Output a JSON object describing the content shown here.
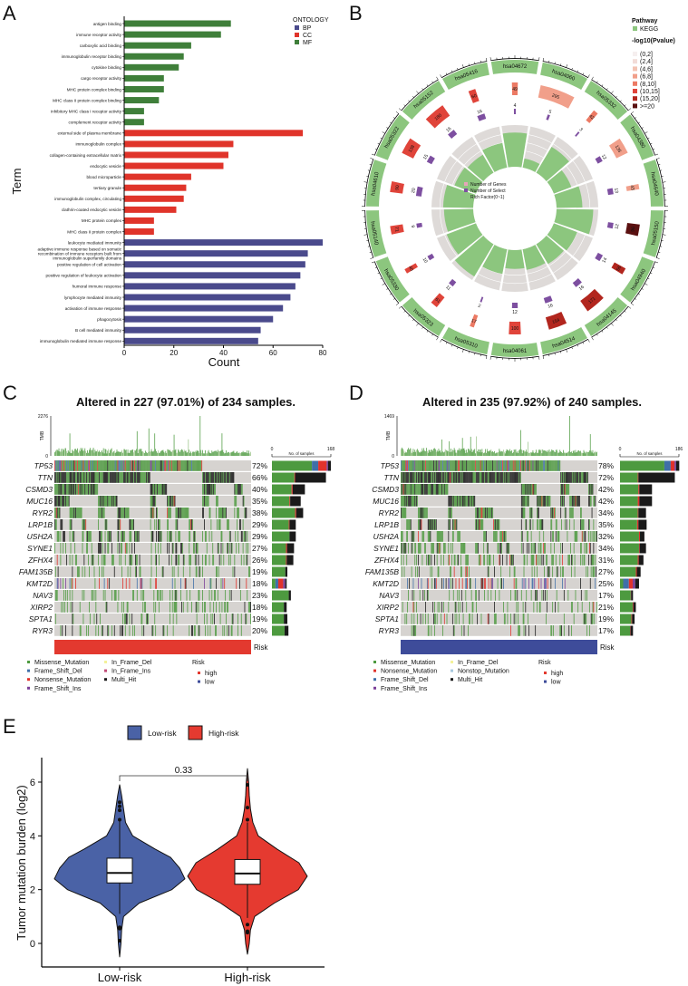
{
  "panel_labels": [
    "A",
    "B",
    "C",
    "D",
    "E"
  ],
  "colors": {
    "BP": "#4a4a8c",
    "CC": "#e0342a",
    "MF": "#3f7f3a",
    "kegg": "#8cc67e",
    "genes": "#e8584a",
    "select": "#7d4fa0",
    "rich": "#8cc67e",
    "ring_bg": "#dedad8",
    "Missense_Mutation": "#4d9a3f",
    "Frame_Shift_Del": "#3f6fa8",
    "Nonsense_Mutation": "#e0322c",
    "Frame_Shift_Ins": "#7b3f99",
    "In_Frame_Del": "#f4f29a",
    "In_Frame_Ins": "#c24b78",
    "Nonstop_Mutation": "#a6c8de",
    "Multi_Hit": "#1a1a1a",
    "cell_bg": "#d6d3d0",
    "risk_high": "#e3392f",
    "risk_low": "#3e4c9a",
    "low_violin": "#4a62a6",
    "high_violin": "#e53a30"
  },
  "chart_data": [
    {
      "type": "bar",
      "orientation": "horizontal",
      "xlabel": "Count",
      "ylabel": "Term",
      "xlim": [
        0,
        80
      ],
      "xticks": [
        "0",
        "20",
        "40",
        "60",
        "80"
      ],
      "legend": {
        "title": "ONTOLOGY",
        "entries": [
          "BP",
          "CC",
          "MF"
        ],
        "position": "top-right"
      },
      "categories": [
        {
          "term": "antigen binding",
          "ont": "MF",
          "count": 43
        },
        {
          "term": "immune receptor activity",
          "ont": "MF",
          "count": 39
        },
        {
          "term": "carboxylic acid binding",
          "ont": "MF",
          "count": 27
        },
        {
          "term": "immunoglobulin receptor binding",
          "ont": "MF",
          "count": 24
        },
        {
          "term": "cytokine binding",
          "ont": "MF",
          "count": 22
        },
        {
          "term": "cargo receptor activity",
          "ont": "MF",
          "count": 16
        },
        {
          "term": "MHC protein complex binding",
          "ont": "MF",
          "count": 16
        },
        {
          "term": "MHC class II protein complex binding",
          "ont": "MF",
          "count": 14
        },
        {
          "term": "inhibitory MHC class I receptor activity",
          "ont": "MF",
          "count": 8
        },
        {
          "term": "complement receptor activity",
          "ont": "MF",
          "count": 8
        },
        {
          "term": "external side of plasma membrane",
          "ont": "CC",
          "count": 72
        },
        {
          "term": "immunoglobulin complex",
          "ont": "CC",
          "count": 44
        },
        {
          "term": "collagen-containing extracellular matrix",
          "ont": "CC",
          "count": 42
        },
        {
          "term": "endocytic vesicle",
          "ont": "CC",
          "count": 40
        },
        {
          "term": "blood microparticle",
          "ont": "CC",
          "count": 27
        },
        {
          "term": "tertiary granule",
          "ont": "CC",
          "count": 25
        },
        {
          "term": "immunoglobulin complex, circulating",
          "ont": "CC",
          "count": 24
        },
        {
          "term": "clathrin-coated endocytic vesicle",
          "ont": "CC",
          "count": 21
        },
        {
          "term": "MHC protein complex",
          "ont": "CC",
          "count": 12
        },
        {
          "term": "MHC class II protein complex",
          "ont": "CC",
          "count": 12
        },
        {
          "term": "leukocyte mediated immunity",
          "ont": "BP",
          "count": 80
        },
        {
          "term": "adaptive immune response based on somatic\nrecombination of immune receptors built from\nimmunoglobulin superfamily domains",
          "ont": "BP",
          "count": 74
        },
        {
          "term": "positive regulation of cell activation",
          "ont": "BP",
          "count": 73
        },
        {
          "term": "positive regulation of leukocyte activation",
          "ont": "BP",
          "count": 71
        },
        {
          "term": "humoral immune response",
          "ont": "BP",
          "count": 69
        },
        {
          "term": "lymphocyte mediated immunity",
          "ont": "BP",
          "count": 67
        },
        {
          "term": "activation of immune response",
          "ont": "BP",
          "count": 64
        },
        {
          "term": "phagocytosis",
          "ont": "BP",
          "count": 60
        },
        {
          "term": "B cell mediated immunity",
          "ont": "BP",
          "count": 55
        },
        {
          "term": "immunoglobulin mediated immune response",
          "ont": "BP",
          "count": 54
        }
      ]
    },
    {
      "type": "circular-enrichment",
      "legend": {
        "pathway_title": "Pathway",
        "pathway_entry": "KEGG",
        "pvalue_title": "-log10(Pvalue)",
        "pvalue_bins": [
          "(0,2]",
          "(2,4]",
          "(4,6]",
          "(6,8]",
          "(8,10]",
          "(10,15]",
          "(15,20]",
          ">=20"
        ],
        "pvalue_colors": [
          "#f6efef",
          "#f2dcd8",
          "#f3c3b3",
          "#f19f8a",
          "#ec7a64",
          "#e0443a",
          "#b2261e",
          "#5a1010"
        ]
      },
      "center_legend": [
        "Number of Genes",
        "Number of Select",
        "Rich Factor(0~1)"
      ],
      "sectors": [
        {
          "id": "hsa04672",
          "genes": 49,
          "select": 4,
          "rich": 0.82,
          "pbin": 4
        },
        {
          "id": "hsa04060",
          "genes": 295,
          "select": 5,
          "rich": 0.22,
          "pbin": 3
        },
        {
          "id": "hsa05332",
          "genes": 42,
          "select": 3,
          "rich": 0.72,
          "pbin": 4
        },
        {
          "id": "hsa04380",
          "genes": 135,
          "select": 12,
          "rich": 0.45,
          "pbin": 3
        },
        {
          "id": "hsa04640",
          "genes": 43,
          "select": 13,
          "rich": 0.62,
          "pbin": 3
        },
        {
          "id": "hsa05150",
          "genes": 96,
          "select": 12,
          "rich": 0.88,
          "pbin": 7
        },
        {
          "id": "hsa04940",
          "genes": 56,
          "select": 14,
          "rich": 0.6,
          "pbin": 6
        },
        {
          "id": "hsa04145",
          "genes": 171,
          "select": 16,
          "rich": 0.55,
          "pbin": 6
        },
        {
          "id": "hsa04514",
          "genes": 154,
          "select": 16,
          "rich": 0.5,
          "pbin": 6
        },
        {
          "id": "hsa04061",
          "genes": 100,
          "select": 12,
          "rich": 0.45,
          "pbin": 5
        },
        {
          "id": "hsa05310",
          "genes": 17,
          "select": 2,
          "rich": 0.6,
          "pbin": 4
        },
        {
          "id": "hsa05323",
          "genes": 61,
          "select": 11,
          "rich": 0.9,
          "pbin": 5
        },
        {
          "id": "hsa05330",
          "genes": 40,
          "select": 10,
          "rich": 0.75,
          "pbin": 5
        },
        {
          "id": "hsa05140",
          "genes": 71,
          "select": 9,
          "rich": 0.7,
          "pbin": 5
        },
        {
          "id": "hsa04610",
          "genes": 90,
          "select": 20,
          "rich": 0.72,
          "pbin": 5
        },
        {
          "id": "hsa05322",
          "genes": 138,
          "select": 15,
          "rich": 0.55,
          "pbin": 5
        },
        {
          "id": "hsa05152",
          "genes": 180,
          "select": 16,
          "rich": 0.5,
          "pbin": 5
        },
        {
          "id": "hsa05416",
          "genes": 60,
          "select": 16,
          "rich": 0.6,
          "pbin": 5
        }
      ]
    },
    {
      "type": "oncoplot",
      "title": "Altered in 227 (97.01%) of 234 samples.",
      "samples": 234,
      "tmb_label": "TMB",
      "tmb_max": "2276",
      "tmb_min": "0",
      "bar_axis": {
        "min": "0",
        "max": "168",
        "label": "No. of samples"
      },
      "risk_label": "Risk",
      "risk_group": "high",
      "segment_types": [
        "Missense_Mutation",
        "Frame_Shift_Del",
        "Nonsense_Mutation",
        "Frame_Shift_Ins",
        "Multi_Hit"
      ],
      "genes": [
        {
          "name": "TP53",
          "pct": "72%",
          "segments": [
            114,
            18,
            24,
            4,
            8
          ]
        },
        {
          "name": "TTN",
          "pct": "66%",
          "segments": [
            64,
            0,
            2,
            0,
            88
          ]
        },
        {
          "name": "CSMD3",
          "pct": "40%",
          "segments": [
            56,
            0,
            3,
            0,
            35
          ]
        },
        {
          "name": "MUC16",
          "pct": "35%",
          "segments": [
            50,
            0,
            2,
            0,
            30
          ]
        },
        {
          "name": "RYR2",
          "pct": "38%",
          "segments": [
            66,
            0,
            3,
            0,
            20
          ]
        },
        {
          "name": "LRP1B",
          "pct": "29%",
          "segments": [
            48,
            0,
            2,
            0,
            18
          ]
        },
        {
          "name": "USH2A",
          "pct": "29%",
          "segments": [
            50,
            0,
            0,
            0,
            18
          ]
        },
        {
          "name": "SYNE1",
          "pct": "27%",
          "segments": [
            40,
            0,
            3,
            0,
            20
          ]
        },
        {
          "name": "ZFHX4",
          "pct": "26%",
          "segments": [
            40,
            0,
            2,
            0,
            19
          ]
        },
        {
          "name": "FAM135B",
          "pct": "19%",
          "segments": [
            38,
            0,
            0,
            0,
            6
          ]
        },
        {
          "name": "KMT2D",
          "pct": "18%",
          "segments": [
            10,
            8,
            14,
            6,
            4
          ]
        },
        {
          "name": "NAV3",
          "pct": "23%",
          "segments": [
            48,
            0,
            0,
            0,
            6
          ]
        },
        {
          "name": "XIRP2",
          "pct": "18%",
          "segments": [
            34,
            0,
            0,
            0,
            8
          ]
        },
        {
          "name": "SPTA1",
          "pct": "19%",
          "segments": [
            34,
            0,
            0,
            0,
            10
          ]
        },
        {
          "name": "RYR3",
          "pct": "20%",
          "segments": [
            36,
            0,
            0,
            0,
            11
          ]
        }
      ],
      "legend_title": "Risk",
      "legend_col1": [
        "Missense_Mutation",
        "Frame_Shift_Del",
        "Nonsense_Mutation",
        "Frame_Shift_Ins"
      ],
      "legend_col2": [
        "In_Frame_Del",
        "In_Frame_Ins",
        "Multi_Hit"
      ],
      "legend_risk": [
        "high",
        "low"
      ]
    },
    {
      "type": "oncoplot",
      "title": "Altered in 235 (97.92%) of 240 samples.",
      "samples": 240,
      "tmb_label": "TMB",
      "tmb_max": "1469",
      "tmb_min": "0",
      "bar_axis": {
        "min": "0",
        "max": "186",
        "label": "No. of samples"
      },
      "risk_label": "Risk",
      "risk_group": "low",
      "segment_types": [
        "Missense_Mutation",
        "Frame_Shift_Del",
        "Nonsense_Mutation",
        "Frame_Shift_Ins",
        "Multi_Hit"
      ],
      "genes": [
        {
          "name": "TP53",
          "pct": "78%",
          "segments": [
            140,
            20,
            12,
            5,
            10
          ]
        },
        {
          "name": "TTN",
          "pct": "72%",
          "segments": [
            56,
            0,
            2,
            0,
            115
          ]
        },
        {
          "name": "CSMD3",
          "pct": "42%",
          "segments": [
            58,
            0,
            3,
            0,
            40
          ]
        },
        {
          "name": "MUC16",
          "pct": "42%",
          "segments": [
            56,
            0,
            5,
            0,
            40
          ]
        },
        {
          "name": "RYR2",
          "pct": "34%",
          "segments": [
            56,
            0,
            2,
            0,
            24
          ]
        },
        {
          "name": "LRP1B",
          "pct": "35%",
          "segments": [
            54,
            0,
            4,
            0,
            26
          ]
        },
        {
          "name": "USH2A",
          "pct": "32%",
          "segments": [
            60,
            0,
            3,
            0,
            14
          ]
        },
        {
          "name": "SYNE1",
          "pct": "34%",
          "segments": [
            60,
            0,
            2,
            0,
            20
          ]
        },
        {
          "name": "ZFHX4",
          "pct": "31%",
          "segments": [
            56,
            0,
            3,
            0,
            15
          ]
        },
        {
          "name": "FAM135B",
          "pct": "27%",
          "segments": [
            50,
            0,
            3,
            0,
            12
          ]
        },
        {
          "name": "KMT2D",
          "pct": "25%",
          "segments": [
            10,
            18,
            12,
            8,
            12
          ]
        },
        {
          "name": "NAV3",
          "pct": "17%",
          "segments": [
            34,
            0,
            1,
            0,
            6
          ]
        },
        {
          "name": "XIRP2",
          "pct": "21%",
          "segments": [
            40,
            0,
            2,
            0,
            8
          ]
        },
        {
          "name": "SPTA1",
          "pct": "19%",
          "segments": [
            36,
            0,
            2,
            0,
            8
          ]
        },
        {
          "name": "RYR3",
          "pct": "17%",
          "segments": [
            32,
            0,
            1,
            0,
            8
          ]
        }
      ],
      "legend_title": "Risk",
      "legend_col1": [
        "Missense_Mutation",
        "Nonsense_Mutation",
        "Frame_Shift_Del",
        "Frame_Shift_Ins"
      ],
      "legend_col2": [
        "In_Frame_Del",
        "Nonstop_Mutation",
        "Multi_Hit"
      ],
      "legend_risk": [
        "high",
        "low"
      ]
    },
    {
      "type": "violin",
      "ylabel": "Tumor mutation burden (log2)",
      "ylim": [
        -0.9,
        6.9
      ],
      "yticks": [
        "0",
        "2",
        "4",
        "6"
      ],
      "categories": [
        "Low-risk",
        "High-risk"
      ],
      "legend": {
        "entries": [
          "Low-risk",
          "High-risk"
        ],
        "position": "top"
      },
      "pvalue": "0.33",
      "groups": [
        {
          "name": "Low-risk",
          "q1": 2.25,
          "median": 2.62,
          "q3": 3.17,
          "whisker_low": 1.1,
          "whisker_high": 4.55,
          "outliers": [
            4.6,
            4.95,
            5.1,
            5.25,
            0.6,
            0.55,
            0.1
          ],
          "density": [
            [
              -0.5,
              0
            ],
            [
              0,
              0.02
            ],
            [
              0.5,
              0.03
            ],
            [
              1,
              0.06
            ],
            [
              1.5,
              0.3
            ],
            [
              2,
              0.8
            ],
            [
              2.4,
              1
            ],
            [
              2.8,
              0.92
            ],
            [
              3.2,
              0.78
            ],
            [
              3.5,
              0.55
            ],
            [
              4,
              0.2
            ],
            [
              4.5,
              0.09
            ],
            [
              5,
              0.06
            ],
            [
              5.5,
              0.03
            ],
            [
              5.9,
              0
            ]
          ]
        },
        {
          "name": "High-risk",
          "q1": 2.2,
          "median": 2.6,
          "q3": 3.12,
          "whisker_low": 0.95,
          "whisker_high": 4.5,
          "outliers": [
            4.6,
            5.05,
            5.9,
            0.7,
            0.45,
            0.4
          ],
          "density": [
            [
              -0.4,
              0
            ],
            [
              0,
              0.03
            ],
            [
              0.5,
              0.05
            ],
            [
              1,
              0.12
            ],
            [
              1.5,
              0.45
            ],
            [
              2,
              0.85
            ],
            [
              2.5,
              1
            ],
            [
              3,
              0.86
            ],
            [
              3.5,
              0.5
            ],
            [
              4,
              0.18
            ],
            [
              4.5,
              0.09
            ],
            [
              5,
              0.05
            ],
            [
              5.5,
              0.03
            ],
            [
              6,
              0.02
            ],
            [
              6.5,
              0
            ]
          ]
        }
      ]
    }
  ]
}
